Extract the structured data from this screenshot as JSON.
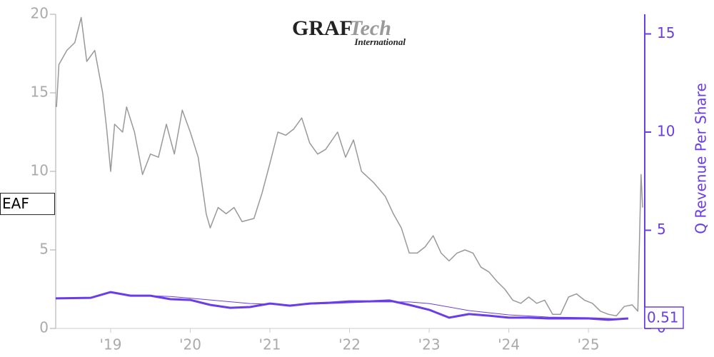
{
  "chart_data": {
    "type": "line",
    "logo": {
      "main": "GRAF",
      "accent": "Tech",
      "sub": "International"
    },
    "ticker": "EAF",
    "y2label": "Q Revenue Per Share",
    "xlim": [
      2018.31,
      2025.68
    ],
    "xticks": [
      {
        "value": 2019,
        "label": "'19"
      },
      {
        "value": 2020,
        "label": "'20"
      },
      {
        "value": 2021,
        "label": "'21"
      },
      {
        "value": 2022,
        "label": "'22"
      },
      {
        "value": 2023,
        "label": "'23"
      },
      {
        "value": 2024,
        "label": "'24"
      },
      {
        "value": 2025,
        "label": "'25"
      }
    ],
    "ylim": [
      0,
      20
    ],
    "yticks": [
      0,
      5,
      10,
      15,
      20
    ],
    "y2lim": [
      0,
      16
    ],
    "y2ticks": [
      0,
      5,
      10,
      15
    ],
    "series": [
      {
        "color": "#999999",
        "width": 1.5,
        "x": [
          2018.32,
          2018.35,
          2018.45,
          2018.55,
          2018.63,
          2018.7,
          2018.8,
          2018.9,
          2018.95,
          2019.0,
          2019.05,
          2019.15,
          2019.2,
          2019.3,
          2019.4,
          2019.5,
          2019.6,
          2019.7,
          2019.8,
          2019.9,
          2020.0,
          2020.1,
          2020.2,
          2020.25,
          2020.35,
          2020.45,
          2020.55,
          2020.65,
          2020.8,
          2020.9,
          2021.0,
          2021.1,
          2021.2,
          2021.3,
          2021.4,
          2021.5,
          2021.6,
          2021.7,
          2021.85,
          2021.95,
          2022.05,
          2022.15,
          2022.3,
          2022.45,
          2022.55,
          2022.65,
          2022.75,
          2022.85,
          2022.95,
          2023.05,
          2023.15,
          2023.25,
          2023.35,
          2023.45,
          2023.55,
          2023.65,
          2023.75,
          2023.85,
          2023.95,
          2024.05,
          2024.15,
          2024.25,
          2024.35,
          2024.45,
          2024.55,
          2024.65,
          2024.75,
          2024.85,
          2024.95,
          2025.05,
          2025.15,
          2025.25,
          2025.35,
          2025.45,
          2025.55,
          2025.62,
          2025.66,
          2025.68
        ],
        "values": [
          14.1,
          16.8,
          17.7,
          18.2,
          19.8,
          17,
          17.7,
          15,
          12.7,
          10,
          13,
          12.5,
          14.1,
          12.5,
          9.8,
          11.1,
          10.9,
          13,
          11.1,
          13.9,
          12.5,
          10.9,
          7.3,
          6.4,
          7.7,
          7.3,
          7.7,
          6.8,
          7.0,
          8.6,
          10.5,
          12.5,
          12.3,
          12.7,
          13.4,
          11.8,
          11.1,
          11.4,
          12.5,
          10.9,
          12,
          10,
          9.3,
          8.4,
          7.3,
          6.4,
          4.8,
          4.8,
          5.2,
          5.9,
          4.8,
          4.3,
          4.8,
          5,
          4.8,
          3.9,
          3.6,
          3.0,
          2.5,
          1.8,
          1.6,
          2.0,
          1.6,
          1.8,
          0.9,
          0.9,
          2.0,
          2.2,
          1.8,
          1.6,
          1.1,
          0.9,
          0.8,
          1.4,
          1.5,
          1.1,
          9.8,
          7.7
        ]
      },
      {
        "color": "#6a3de8",
        "width": 3,
        "axis": "y2",
        "x": [
          2018.31,
          2018.75,
          2019.0,
          2019.25,
          2019.5,
          2019.75,
          2020.0,
          2020.25,
          2020.5,
          2020.75,
          2021.0,
          2021.25,
          2021.5,
          2021.75,
          2022.0,
          2022.25,
          2022.5,
          2022.75,
          2023.0,
          2023.25,
          2023.5,
          2023.75,
          2024.0,
          2024.25,
          2024.5,
          2024.75,
          2025.0,
          2025.25,
          2025.5
        ],
        "values": [
          1.53,
          1.56,
          1.85,
          1.67,
          1.67,
          1.49,
          1.45,
          1.2,
          1.05,
          1.09,
          1.27,
          1.16,
          1.27,
          1.31,
          1.38,
          1.38,
          1.42,
          1.2,
          0.95,
          0.55,
          0.73,
          0.65,
          0.55,
          0.55,
          0.51,
          0.51,
          0.51,
          0.44,
          0.51
        ]
      },
      {
        "color": "#6a3de8",
        "width": 1,
        "axis": "y2",
        "x": [
          2019.25,
          2019.75,
          2020.25,
          2020.75,
          2021.25,
          2021.75,
          2022.25,
          2022.75,
          2023.0,
          2023.5,
          2024.0,
          2024.5,
          2025.0,
          2025.5
        ],
        "values": [
          1.7,
          1.63,
          1.45,
          1.27,
          1.2,
          1.27,
          1.35,
          1.35,
          1.27,
          0.91,
          0.69,
          0.58,
          0.55,
          0.47
        ]
      }
    ]
  }
}
